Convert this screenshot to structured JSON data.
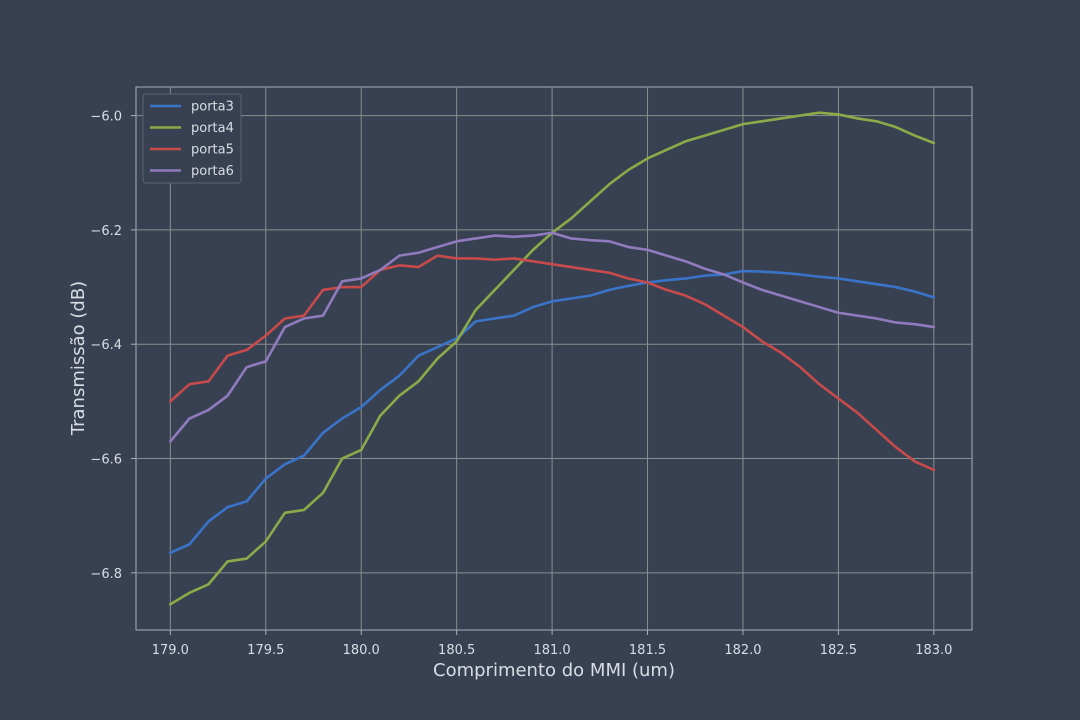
{
  "chart_data": {
    "type": "line",
    "title": "",
    "xlabel": "Comprimento do MMI (um)",
    "ylabel": "Transmissão (dB)",
    "xlim": [
      178.82,
      183.2
    ],
    "ylim": [
      -6.9,
      -5.95
    ],
    "xticks": [
      179.0,
      179.5,
      180.0,
      180.5,
      181.0,
      181.5,
      182.0,
      182.5,
      183.0
    ],
    "yticks": [
      -6.8,
      -6.6,
      -6.4,
      -6.2,
      -6.0
    ],
    "xtick_labels": [
      "179.0",
      "179.5",
      "180.0",
      "180.5",
      "181.0",
      "181.5",
      "182.0",
      "182.5",
      "183.0"
    ],
    "ytick_labels": [
      "−6.8",
      "−6.6",
      "−6.4",
      "−6.2",
      "−6.0"
    ],
    "grid": true,
    "legend_position": "top-left",
    "x": [
      179.0,
      179.1,
      179.2,
      179.3,
      179.4,
      179.5,
      179.6,
      179.7,
      179.8,
      179.9,
      180.0,
      180.1,
      180.2,
      180.3,
      180.4,
      180.5,
      180.6,
      180.7,
      180.8,
      180.9,
      181.0,
      181.1,
      181.2,
      181.3,
      181.4,
      181.5,
      181.6,
      181.7,
      181.8,
      181.9,
      182.0,
      182.1,
      182.2,
      182.3,
      182.4,
      182.5,
      182.6,
      182.7,
      182.8,
      182.9,
      183.0
    ],
    "series": [
      {
        "name": "porta3",
        "color": "#3a74c9",
        "values": [
          -6.765,
          -6.75,
          -6.71,
          -6.685,
          -6.675,
          -6.635,
          -6.61,
          -6.595,
          -6.555,
          -6.53,
          -6.51,
          -6.48,
          -6.455,
          -6.42,
          -6.405,
          -6.39,
          -6.36,
          -6.355,
          -6.35,
          -6.335,
          -6.325,
          -6.32,
          -6.315,
          -6.305,
          -6.298,
          -6.292,
          -6.288,
          -6.285,
          -6.28,
          -6.278,
          -6.272,
          -6.273,
          -6.275,
          -6.278,
          -6.282,
          -6.285,
          -6.29,
          -6.295,
          -6.3,
          -6.308,
          -6.318
        ]
      },
      {
        "name": "porta4",
        "color": "#8aab48",
        "values": [
          -6.855,
          -6.835,
          -6.82,
          -6.78,
          -6.775,
          -6.745,
          -6.695,
          -6.69,
          -6.66,
          -6.6,
          -6.585,
          -6.525,
          -6.49,
          -6.465,
          -6.425,
          -6.395,
          -6.34,
          -6.305,
          -6.27,
          -6.235,
          -6.205,
          -6.18,
          -6.15,
          -6.12,
          -6.095,
          -6.075,
          -6.06,
          -6.045,
          -6.035,
          -6.025,
          -6.015,
          -6.01,
          -6.005,
          -6.0,
          -5.995,
          -5.998,
          -6.005,
          -6.01,
          -6.02,
          -6.035,
          -6.048
        ]
      },
      {
        "name": "porta5",
        "color": "#c84a4a",
        "values": [
          -6.5,
          -6.47,
          -6.465,
          -6.42,
          -6.41,
          -6.385,
          -6.355,
          -6.35,
          -6.305,
          -6.3,
          -6.3,
          -6.27,
          -6.262,
          -6.265,
          -6.245,
          -6.25,
          -6.25,
          -6.252,
          -6.25,
          -6.255,
          -6.26,
          -6.265,
          -6.27,
          -6.275,
          -6.285,
          -6.292,
          -6.305,
          -6.315,
          -6.33,
          -6.35,
          -6.37,
          -6.395,
          -6.415,
          -6.44,
          -6.47,
          -6.495,
          -6.52,
          -6.55,
          -6.58,
          -6.605,
          -6.62
        ]
      },
      {
        "name": "porta6",
        "color": "#8f7bbd",
        "values": [
          -6.57,
          -6.53,
          -6.515,
          -6.49,
          -6.44,
          -6.43,
          -6.37,
          -6.355,
          -6.35,
          -6.29,
          -6.285,
          -6.27,
          -6.245,
          -6.24,
          -6.23,
          -6.22,
          -6.215,
          -6.21,
          -6.212,
          -6.21,
          -6.205,
          -6.215,
          -6.218,
          -6.22,
          -6.23,
          -6.235,
          -6.245,
          -6.255,
          -6.268,
          -6.278,
          -6.292,
          -6.305,
          -6.315,
          -6.325,
          -6.335,
          -6.345,
          -6.35,
          -6.355,
          -6.362,
          -6.365,
          -6.37
        ]
      }
    ]
  }
}
